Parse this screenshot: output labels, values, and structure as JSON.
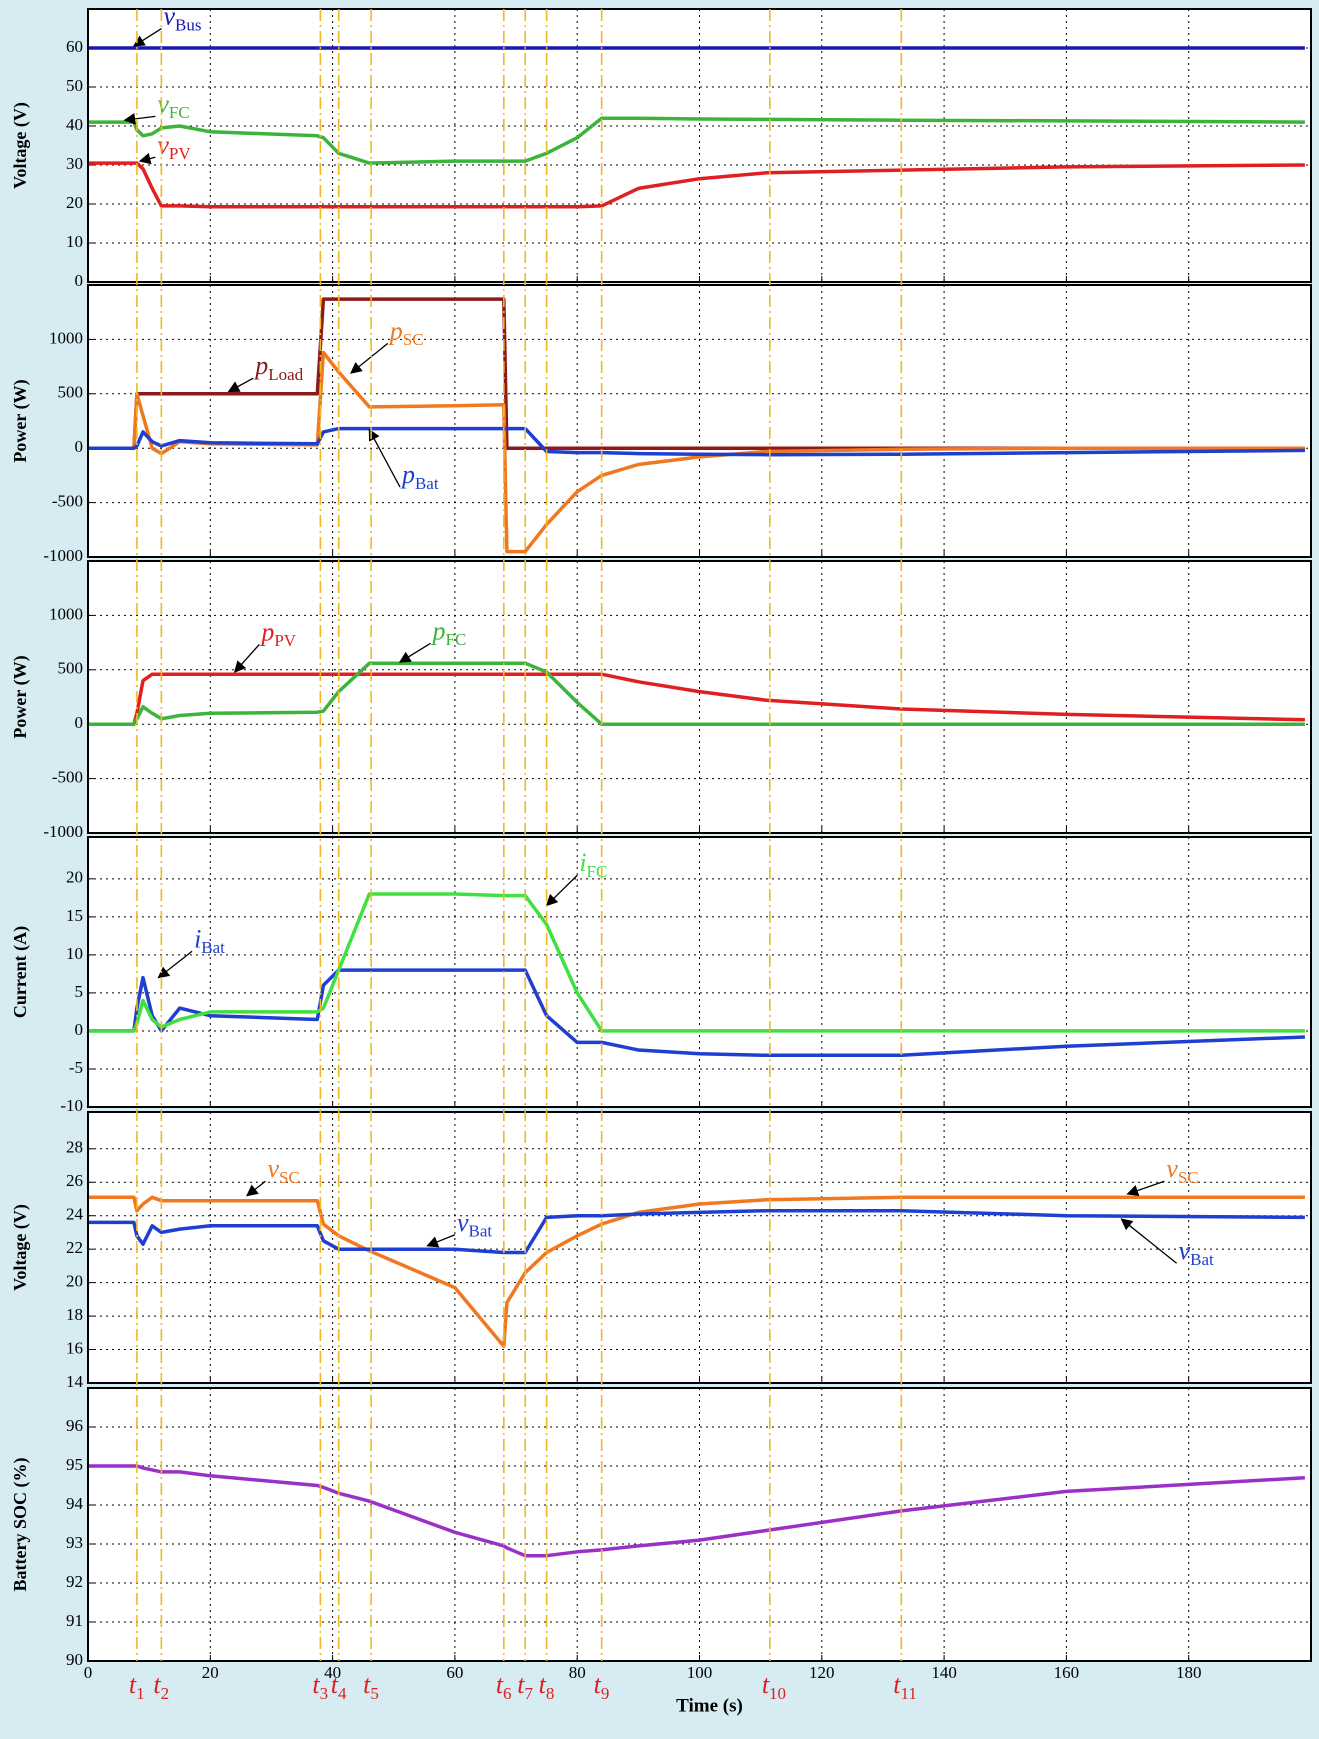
{
  "chart_data": [
    {
      "type": "line",
      "ylabel": "Voltage (V)",
      "grid": true,
      "xlim": [
        0,
        200
      ],
      "xticks": [
        0,
        20,
        40,
        60,
        80,
        100,
        120,
        140,
        160,
        180
      ],
      "ylim": [
        0,
        70
      ],
      "yticks": [
        0,
        10,
        20,
        30,
        40,
        50,
        60
      ],
      "x": [
        0,
        7.5,
        8,
        9,
        10.5,
        12,
        15,
        20,
        37.5,
        38.5,
        41,
        46,
        60,
        68,
        68.5,
        71.5,
        75,
        80,
        84,
        90,
        100,
        111,
        133,
        160,
        199
      ],
      "series": [
        {
          "name": "vBus",
          "color": "#1a1ab4",
          "values": [
            60,
            60,
            60,
            60,
            60,
            60,
            60,
            60,
            60,
            60,
            60,
            60,
            60,
            60,
            60,
            60,
            60,
            60,
            60,
            60,
            60,
            60,
            60,
            60,
            60
          ]
        },
        {
          "name": "vFC",
          "color": "#3cb43c",
          "values": [
            41,
            41,
            39,
            37.5,
            38,
            39.5,
            40,
            38.5,
            37.5,
            37,
            33,
            30.5,
            31,
            31,
            31,
            31,
            33,
            37,
            42,
            42,
            41.8,
            41.7,
            41.5,
            41.3,
            41
          ]
        },
        {
          "name": "vPV",
          "color": "#e02020",
          "values": [
            30.5,
            30.5,
            30.5,
            29,
            24,
            19.5,
            19.5,
            19.3,
            19.3,
            19.3,
            19.3,
            19.3,
            19.3,
            19.3,
            19.3,
            19.3,
            19.3,
            19.3,
            19.5,
            24,
            26.5,
            28,
            28.7,
            29.5,
            30
          ]
        }
      ]
    },
    {
      "type": "line",
      "ylabel": "Power (W)",
      "grid": true,
      "xlim": [
        0,
        200
      ],
      "xticks": [
        0,
        20,
        40,
        60,
        80,
        100,
        120,
        140,
        160,
        180
      ],
      "ylim": [
        -1000,
        1500
      ],
      "yticks": [
        -1000,
        -500,
        0,
        500,
        1000
      ],
      "x": [
        0,
        7.5,
        8,
        9,
        10.5,
        12,
        15,
        20,
        37.5,
        38.5,
        41,
        46,
        60,
        68,
        68.5,
        71.5,
        75,
        80,
        84,
        90,
        100,
        111,
        133,
        160,
        199
      ],
      "series": [
        {
          "name": "pLoad",
          "color": "#8b1a1a",
          "values": [
            0,
            0,
            500,
            500,
            500,
            500,
            500,
            500,
            500,
            1370,
            1370,
            1370,
            1370,
            1370,
            0,
            0,
            0,
            0,
            0,
            0,
            0,
            0,
            0,
            0,
            0
          ]
        },
        {
          "name": "pSC",
          "color": "#f07820",
          "values": [
            0,
            0,
            500,
            300,
            0,
            -50,
            60,
            40,
            30,
            880,
            700,
            380,
            390,
            400,
            -950,
            -950,
            -700,
            -400,
            -250,
            -150,
            -80,
            -30,
            -10,
            0,
            0
          ]
        },
        {
          "name": "pBat",
          "color": "#1f3fd0",
          "values": [
            0,
            0,
            20,
            150,
            60,
            20,
            70,
            50,
            40,
            150,
            180,
            180,
            180,
            180,
            180,
            180,
            -30,
            -40,
            -40,
            -50,
            -55,
            -60,
            -55,
            -40,
            -20
          ]
        }
      ]
    },
    {
      "type": "line",
      "ylabel": "Power (W)",
      "grid": true,
      "xlim": [
        0,
        200
      ],
      "xticks": [
        0,
        20,
        40,
        60,
        80,
        100,
        120,
        140,
        160,
        180
      ],
      "ylim": [
        -1000,
        1500
      ],
      "yticks": [
        -1000,
        -500,
        0,
        500,
        1000
      ],
      "x": [
        0,
        7.5,
        8,
        9,
        10.5,
        12,
        15,
        20,
        37.5,
        38.5,
        41,
        46,
        60,
        68,
        68.5,
        71.5,
        75,
        80,
        84,
        90,
        100,
        111,
        133,
        160,
        199
      ],
      "series": [
        {
          "name": "pPV",
          "color": "#e02020",
          "values": [
            0,
            0,
            100,
            400,
            460,
            460,
            460,
            460,
            460,
            460,
            460,
            460,
            460,
            460,
            460,
            460,
            460,
            460,
            460,
            390,
            300,
            220,
            140,
            90,
            40
          ]
        },
        {
          "name": "pFC",
          "color": "#3cb43c",
          "values": [
            0,
            0,
            50,
            160,
            100,
            50,
            80,
            100,
            110,
            120,
            300,
            560,
            560,
            560,
            560,
            560,
            480,
            200,
            0,
            0,
            0,
            0,
            0,
            0,
            0
          ]
        }
      ]
    },
    {
      "type": "line",
      "ylabel": "Current (A)",
      "grid": true,
      "xlim": [
        0,
        200
      ],
      "xticks": [
        0,
        20,
        40,
        60,
        80,
        100,
        120,
        140,
        160,
        180
      ],
      "ylim": [
        -10,
        25.5
      ],
      "yticks": [
        -10,
        -5,
        0,
        5,
        10,
        15,
        20
      ],
      "x": [
        0,
        7.5,
        8,
        9,
        10.5,
        12,
        15,
        20,
        37.5,
        38.5,
        41,
        46,
        60,
        68,
        68.5,
        71.5,
        75,
        80,
        84,
        90,
        100,
        111,
        133,
        160,
        199
      ],
      "series": [
        {
          "name": "iBat",
          "color": "#1f3fd0",
          "values": [
            0,
            0,
            3,
            7,
            2,
            0,
            3,
            2,
            1.5,
            6,
            8,
            8,
            8,
            8,
            8,
            8,
            2,
            -1.5,
            -1.5,
            -2.5,
            -3,
            -3.2,
            -3.2,
            -2,
            -0.8
          ]
        },
        {
          "name": "iFC",
          "color": "#40e040",
          "values": [
            0,
            0,
            1,
            4,
            1.5,
            0.5,
            1.5,
            2.5,
            2.5,
            3,
            8,
            18,
            18,
            17.8,
            17.8,
            17.8,
            14,
            5,
            0,
            0,
            0,
            0,
            0,
            0,
            0
          ]
        }
      ]
    },
    {
      "type": "line",
      "ylabel": "Voltage (V)",
      "grid": true,
      "xlim": [
        0,
        200
      ],
      "xticks": [
        0,
        20,
        40,
        60,
        80,
        100,
        120,
        140,
        160,
        180
      ],
      "ylim": [
        14,
        30.2
      ],
      "yticks": [
        14,
        16,
        18,
        20,
        22,
        24,
        26,
        28
      ],
      "x": [
        0,
        7.5,
        8,
        9,
        10.5,
        12,
        15,
        20,
        37.5,
        38.5,
        41,
        46,
        60,
        68,
        68.5,
        71.5,
        75,
        80,
        84,
        90,
        100,
        111,
        133,
        160,
        199
      ],
      "series": [
        {
          "name": "vSC",
          "color": "#f07820",
          "values": [
            25.1,
            25.1,
            24.3,
            24.7,
            25.1,
            24.9,
            24.9,
            24.9,
            24.9,
            23.5,
            22.8,
            21.9,
            19.7,
            16.2,
            18.8,
            20.6,
            21.8,
            22.8,
            23.5,
            24.2,
            24.7,
            24.95,
            25.1,
            25.1,
            25.1
          ]
        },
        {
          "name": "vBat",
          "color": "#1f3fd0",
          "values": [
            23.6,
            23.6,
            22.8,
            22.3,
            23.4,
            23,
            23.2,
            23.4,
            23.4,
            22.5,
            22,
            22,
            22,
            21.8,
            21.8,
            21.8,
            23.9,
            24,
            24,
            24.1,
            24.2,
            24.3,
            24.3,
            24,
            23.9
          ]
        }
      ]
    },
    {
      "type": "line",
      "ylabel": "Battery SOC (%)",
      "xlabel": "Time (s)",
      "grid": true,
      "xlim": [
        0,
        200
      ],
      "xticks": [
        0,
        20,
        40,
        60,
        80,
        100,
        120,
        140,
        160,
        180
      ],
      "ylim": [
        90,
        97
      ],
      "yticks": [
        90,
        91,
        92,
        93,
        94,
        95,
        96
      ],
      "x": [
        0,
        7.5,
        8,
        9,
        10.5,
        12,
        15,
        20,
        37.5,
        38.5,
        41,
        46,
        60,
        68,
        68.5,
        71.5,
        75,
        80,
        84,
        90,
        100,
        111,
        133,
        160,
        199
      ],
      "series": [
        {
          "name": "SOC",
          "color": "#9b30c8",
          "values": [
            95,
            95,
            95,
            94.95,
            94.9,
            94.85,
            94.85,
            94.75,
            94.5,
            94.45,
            94.3,
            94.1,
            93.3,
            92.95,
            92.9,
            92.7,
            92.7,
            92.8,
            92.85,
            92.95,
            93.1,
            93.35,
            93.85,
            94.35,
            94.7
          ]
        }
      ],
      "annotations": [
        {
          "value": 8,
          "label": "t1"
        },
        {
          "value": 12,
          "label": "t2"
        },
        {
          "value": 38,
          "label": "t3"
        },
        {
          "value": 41,
          "label": "t4"
        },
        {
          "value": 46.3,
          "label": "t5"
        },
        {
          "value": 68,
          "label": "t6"
        },
        {
          "value": 71.5,
          "label": "t7"
        },
        {
          "value": 75,
          "label": "t8"
        },
        {
          "value": 84,
          "label": "t9"
        },
        {
          "value": 111.5,
          "label": "t10"
        },
        {
          "value": 133,
          "label": "t11"
        }
      ]
    }
  ]
}
